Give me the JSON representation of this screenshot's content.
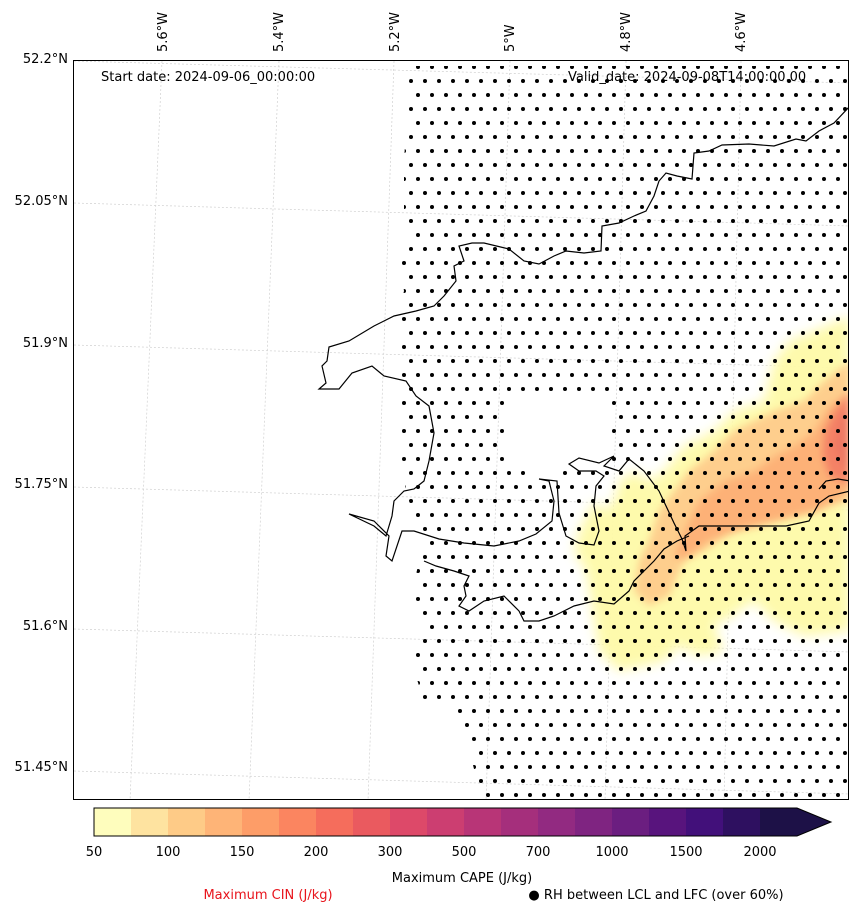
{
  "map": {
    "start_date": "Start date: 2024-09-06_00:00:00",
    "valid_date": "Valid_date: 2024-09-08T14:00:00.00",
    "lon_labels": [
      "5.6°W",
      "5.4°W",
      "5.2°W",
      "5°W",
      "4.8°W",
      "4.6°W"
    ],
    "lat_labels": [
      "52.2°N",
      "52.05°N",
      "51.9°N",
      "51.75°N",
      "51.6°N",
      "51.45°N"
    ],
    "coastline_color": "#000000",
    "gridline_color": "#cccccc",
    "rh_marker": "dot"
  },
  "colorbar": {
    "label": "Maximum CAPE (J/kg)",
    "levels": [
      "50",
      "100",
      "150",
      "200",
      "300",
      "500",
      "700",
      "1000",
      "1500",
      "2000"
    ],
    "colors": [
      "#fefdbd",
      "#fee3a0",
      "#fecb87",
      "#feb477",
      "#fd9d68",
      "#fb8560",
      "#f56d5c",
      "#ea5a5f",
      "#dd4969",
      "#cc3e71",
      "#b83577",
      "#a52f7c",
      "#922a81",
      "#7f2481",
      "#6b1e80",
      "#58147d",
      "#42107a",
      "#2e1060",
      "#1d1147"
    ],
    "extend": "max"
  },
  "legend": {
    "cin_label": "Maximum CIN (J/kg)",
    "cin_color": "#e8141c",
    "rh_label": "● RH between LCL and LFC (over 60%)"
  }
}
